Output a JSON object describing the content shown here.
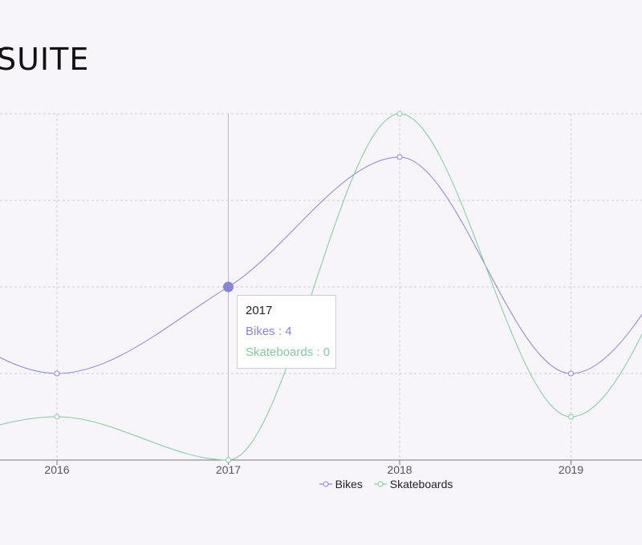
{
  "page": {
    "title": "SUITE"
  },
  "chart_data": {
    "type": "line",
    "categories": [
      "2016",
      "2017",
      "2018",
      "2019"
    ],
    "series": [
      {
        "name": "Bikes",
        "color": "#8884d8",
        "values": [
          2,
          4,
          7,
          2
        ]
      },
      {
        "name": "Skateboards",
        "color": "#82ca9d",
        "values": [
          1,
          0,
          8,
          1
        ]
      }
    ],
    "ylim": [
      0,
      8
    ],
    "grid": true,
    "legend": "bottom",
    "tooltip": {
      "label": "2017",
      "rows": [
        {
          "name": "Bikes",
          "value": "4",
          "color": "#8884d8"
        },
        {
          "name": "Skateboards",
          "value": "0",
          "color": "#82ca9d"
        }
      ]
    }
  }
}
